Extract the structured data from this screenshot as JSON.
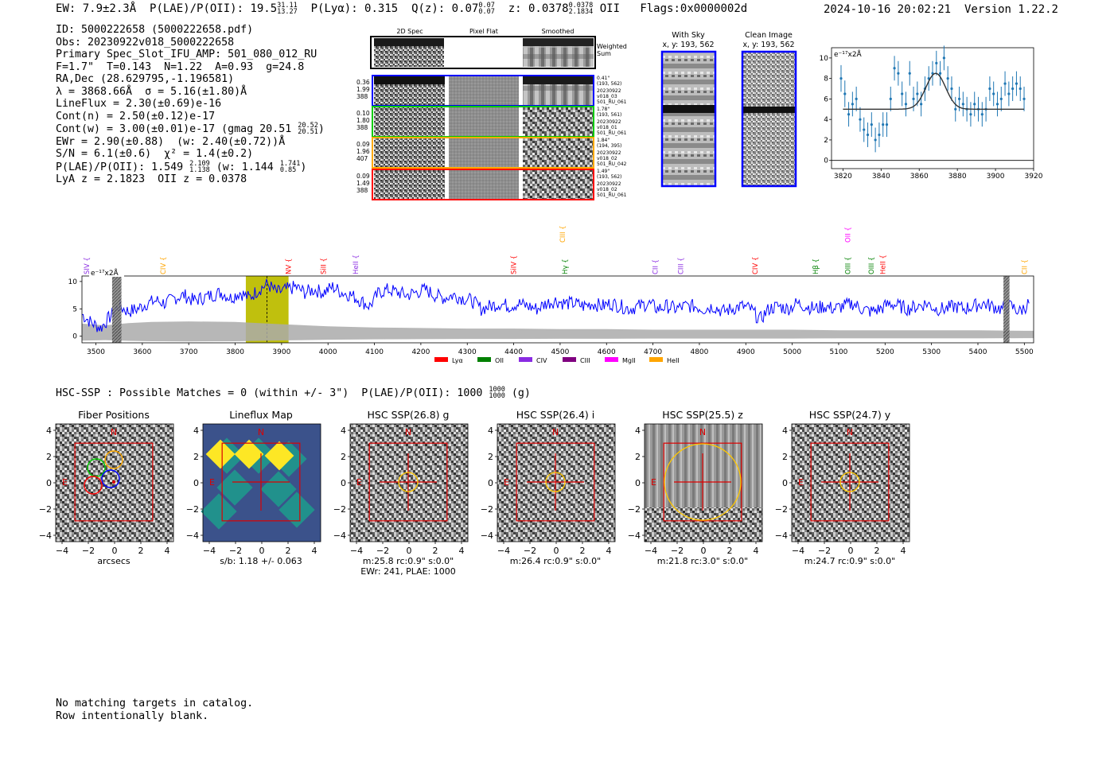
{
  "header": {
    "ew": "EW: 7.9±2.3Å",
    "plae": "P(LAE)/P(OII): 19.5",
    "plae_hi": "31.11",
    "plae_lo": "13.27",
    "plya": "P(Lyα): 0.315",
    "qz": "Q(z): 0.07",
    "qz_hi": "0.07",
    "qz_lo": "0.07",
    "z": "z: 0.0378",
    "z_hi": "0.0378",
    "z_lo": "2.1834",
    "z_tag": "OII",
    "flags": "Flags:0x0000002d",
    "datetime": "2024-10-16 20:02:21",
    "version": "Version 1.22.2"
  },
  "info": {
    "id": "ID: 5000222658 (5000222658.pdf)",
    "obs": "Obs: 20230922v018_5000222658",
    "primary": "Primary Spec_Slot_IFU_AMP: 501_080_012_RU",
    "fwhm": "F=1.7\"  T=0.143  N=1.22  A=0.93  g=24.8",
    "radec": "RA,Dec (28.629795,-1.196581)",
    "lambda": "λ = 3868.66Å  σ = 5.16(±1.80)Å",
    "lineflux": "LineFlux = 2.30(±0.69)e-16",
    "contn": "Cont(n) = 2.50(±0.12)e-17",
    "contw": "Cont(w) = 3.00(±0.01)e-17 (gmag 20.51",
    "contw_hi": "20.52",
    "contw_lo": "20.51",
    "contw_end": ")",
    "ewr": "EWr = 2.90(±0.88)  (w: 2.40(±0.72))Å",
    "sn": "S/N = 6.1(±0.6)  χ² = 1.4(±0.2)",
    "plae2": "P(LAE)/P(OII): 1.549",
    "plae2_hi": "2.109",
    "plae2_lo": "1.138",
    "plae2_w": "(w: 1.144",
    "plae2_w_hi": "1.741",
    "plae2_w_lo": "0.85",
    "plae2_end": ")",
    "lyaz": "LyA z = 2.1823  OII z = 0.0378"
  },
  "cutouts": {
    "col_headers": [
      "2D Spec",
      "Pixel Flat",
      "Smoothed"
    ],
    "weighted_sum": [
      "Weighted",
      "Sum"
    ],
    "rows": [
      {
        "left": [
          "0.36",
          "1.99",
          "388"
        ],
        "right": [
          "0.41\"",
          "(193, 562)",
          "20230922",
          "v018_03",
          "501_RU_061"
        ],
        "color": "#0000ff"
      },
      {
        "left": [
          "0.10",
          "1.80",
          "388"
        ],
        "right": [
          "1.78\"",
          "(193, 561)",
          "20230922",
          "v018_01",
          "501_RU_061"
        ],
        "color": "#00cc00"
      },
      {
        "left": [
          "0.09",
          "1.96",
          "407"
        ],
        "right": [
          "1.84\"",
          "(194, 395)",
          "20230922",
          "v018_02",
          "501_RU_042"
        ],
        "color": "#ffaa00"
      },
      {
        "left": [
          "0.09",
          "1.49",
          "388"
        ],
        "right": [
          "1.49\"",
          "(193, 562)",
          "20230922",
          "v018_02",
          "501_RU_061"
        ],
        "color": "#ff0000"
      }
    ]
  },
  "sky": {
    "with_sky": [
      "With Sky",
      "x, y: 193, 562"
    ],
    "clean": [
      "Clean Image",
      "x, y: 193, 562"
    ]
  },
  "zoom_chart": {
    "unit_label": "e⁻¹⁷x2Å",
    "xticks": [
      "3820",
      "3840",
      "3860",
      "3880",
      "3900",
      "3920"
    ],
    "yticks": [
      "0",
      "2",
      "4",
      "6",
      "8",
      "10"
    ]
  },
  "chart_data": {
    "type": "line",
    "title": "",
    "xlabel": "",
    "ylabel": "e-17x2Å",
    "xlim": [
      3470,
      5520
    ],
    "ylim": [
      -1.2,
      11
    ],
    "grid": false,
    "highlight_band": [
      3823,
      3915
    ],
    "center_line": 3868.66,
    "xticks": [
      3500,
      3600,
      3700,
      3800,
      3900,
      4000,
      4100,
      4200,
      4300,
      4400,
      4500,
      4600,
      4700,
      4800,
      4900,
      5000,
      5100,
      5200,
      5300,
      5400,
      5500
    ],
    "yticks": [
      0,
      5,
      10
    ],
    "line_labels": [
      {
        "name": "SIV",
        "wl": 3480,
        "color": "#8a2be2",
        "level": 0
      },
      {
        "name": "CIV",
        "wl": 3645,
        "color": "#ffa500",
        "level": 0
      },
      {
        "name": "NV",
        "wl": 3915,
        "color": "#ff0000",
        "level": 0
      },
      {
        "name": "SiII",
        "wl": 3990,
        "color": "#ff0000",
        "level": 0
      },
      {
        "name": "HeII",
        "wl": 4060,
        "color": "#8a2be2",
        "level": 0
      },
      {
        "name": "SiIV",
        "wl": 4400,
        "color": "#ff0000",
        "level": 0
      },
      {
        "name": "CIII",
        "wl": 4505,
        "color": "#ffa500",
        "level": 1
      },
      {
        "name": "Hγ",
        "wl": 4510,
        "color": "#008000",
        "level": 0
      },
      {
        "name": "CII",
        "wl": 4705,
        "color": "#8a2be2",
        "level": 0
      },
      {
        "name": "CIII",
        "wl": 4760,
        "color": "#8a2be2",
        "level": 0
      },
      {
        "name": "CIV",
        "wl": 4920,
        "color": "#ff0000",
        "level": 0
      },
      {
        "name": "Hβ",
        "wl": 5050,
        "color": "#008000",
        "level": 0
      },
      {
        "name": "OII",
        "wl": 5120,
        "color": "#ff00ff",
        "level": 1
      },
      {
        "name": "OIII",
        "wl": 5120,
        "color": "#008000",
        "level": 0
      },
      {
        "name": "OIII",
        "wl": 5170,
        "color": "#008000",
        "level": 0
      },
      {
        "name": "HeII",
        "wl": 5195,
        "color": "#ff0000",
        "level": 0
      },
      {
        "name": "CII",
        "wl": 5500,
        "color": "#ffa500",
        "level": 0
      }
    ],
    "legend": [
      {
        "name": "Lyα",
        "color": "#ff0000"
      },
      {
        "name": "OII",
        "color": "#008000"
      },
      {
        "name": "CIV",
        "color": "#8a2be2"
      },
      {
        "name": "CIII",
        "color": "#800080"
      },
      {
        "name": "MgII",
        "color": "#ff00ff"
      },
      {
        "name": "HeII",
        "color": "#ffa500"
      }
    ],
    "series": [
      {
        "name": "",
        "color": "#0000ff",
        "x": [
          3470,
          3490,
          3510,
          3530,
          3550,
          3570,
          3590,
          3610,
          3630,
          3650,
          3670,
          3690,
          3710,
          3730,
          3750,
          3770,
          3790,
          3810,
          3830,
          3850,
          3870,
          3890,
          3910,
          3930,
          3950,
          3970,
          3990,
          4010,
          4030,
          4050,
          4070,
          4090,
          4110,
          4130,
          4150,
          4170,
          4190,
          4210,
          4230,
          4250,
          4270,
          4290,
          4310,
          4330,
          4350,
          4370,
          4390,
          4410,
          4430,
          4450,
          4470,
          4490,
          4510,
          4530,
          4550,
          4570,
          4590,
          4610,
          4630,
          4650,
          4670,
          4690,
          4710,
          4730,
          4750,
          4770,
          4790,
          4810,
          4830,
          4850,
          4870,
          4890,
          4910,
          4930,
          4950,
          4970,
          4990,
          5010,
          5030,
          5050,
          5070,
          5090,
          5110,
          5130,
          5150,
          5170,
          5190,
          5210,
          5230,
          5250,
          5270,
          5290,
          5310,
          5330,
          5350,
          5370,
          5390,
          5410,
          5430,
          5450,
          5470,
          5490,
          5510
        ],
        "y": [
          4.0,
          2.5,
          1.5,
          3.5,
          5.5,
          4.5,
          5.0,
          6.0,
          6.5,
          6.0,
          7.0,
          7.5,
          6.5,
          7.0,
          7.5,
          8.0,
          7.0,
          8.0,
          7.0,
          8.5,
          9.5,
          8.0,
          8.5,
          9.0,
          8.0,
          8.5,
          8.0,
          9.0,
          8.0,
          7.5,
          6.5,
          5.5,
          8.0,
          8.5,
          8.0,
          7.5,
          8.0,
          8.5,
          7.5,
          7.0,
          7.5,
          7.0,
          6.5,
          5.0,
          5.5,
          6.0,
          5.5,
          6.0,
          5.5,
          5.0,
          6.0,
          6.5,
          6.0,
          6.0,
          5.5,
          6.0,
          5.5,
          6.0,
          5.5,
          5.0,
          5.5,
          6.0,
          5.0,
          5.5,
          5.0,
          5.5,
          5.5,
          5.0,
          5.5,
          4.5,
          5.0,
          5.5,
          5.0,
          3.0,
          5.0,
          5.5,
          5.0,
          6.0,
          5.5,
          5.0,
          5.5,
          5.0,
          5.5,
          6.0,
          5.0,
          4.5,
          5.0,
          6.0,
          5.5,
          5.0,
          5.5,
          6.0,
          5.0,
          5.0,
          5.5,
          5.0,
          5.5,
          6.0,
          5.5,
          5.0,
          5.5,
          4.5,
          6.0
        ]
      },
      {
        "name": "",
        "color": "#aaaaaa",
        "x": [
          3470,
          3520,
          3570,
          3620,
          3700,
          3800,
          3900,
          4000,
          4100,
          4200,
          4300,
          4400,
          4500,
          4600,
          4700,
          4800,
          4900,
          5000,
          5100,
          5200,
          5300,
          5400,
          5500,
          5520
        ],
        "y": [
          2.3,
          2.0,
          2.4,
          2.6,
          2.7,
          2.6,
          2.2,
          1.8,
          1.6,
          1.5,
          1.4,
          1.4,
          1.3,
          1.3,
          1.2,
          1.2,
          1.2,
          1.2,
          1.1,
          1.1,
          1.1,
          1.1,
          1.0,
          1.0
        ]
      }
    ],
    "zoom": {
      "xlim": [
        3814,
        3920
      ],
      "ylim": [
        -0.8,
        11
      ],
      "points": [
        {
          "x": 3819,
          "y": 8.0,
          "e": 1.3
        },
        {
          "x": 3821,
          "y": 6.5,
          "e": 1.3
        },
        {
          "x": 3823,
          "y": 4.5,
          "e": 1.2
        },
        {
          "x": 3825,
          "y": 5.5,
          "e": 1.2
        },
        {
          "x": 3827,
          "y": 6.0,
          "e": 1.2
        },
        {
          "x": 3829,
          "y": 4.0,
          "e": 1.2
        },
        {
          "x": 3831,
          "y": 3.0,
          "e": 1.2
        },
        {
          "x": 3833,
          "y": 2.5,
          "e": 1.2
        },
        {
          "x": 3835,
          "y": 3.5,
          "e": 1.2
        },
        {
          "x": 3837,
          "y": 2.0,
          "e": 1.2
        },
        {
          "x": 3839,
          "y": 2.5,
          "e": 1.2
        },
        {
          "x": 3841,
          "y": 3.5,
          "e": 1.2
        },
        {
          "x": 3843,
          "y": 3.5,
          "e": 1.2
        },
        {
          "x": 3845,
          "y": 6.0,
          "e": 1.2
        },
        {
          "x": 3847,
          "y": 9.0,
          "e": 1.2
        },
        {
          "x": 3849,
          "y": 8.5,
          "e": 1.2
        },
        {
          "x": 3851,
          "y": 6.5,
          "e": 1.2
        },
        {
          "x": 3853,
          "y": 5.5,
          "e": 1.2
        },
        {
          "x": 3855,
          "y": 8.5,
          "e": 1.2
        },
        {
          "x": 3857,
          "y": 6.0,
          "e": 1.2
        },
        {
          "x": 3859,
          "y": 6.5,
          "e": 1.2
        },
        {
          "x": 3861,
          "y": 5.5,
          "e": 1.2
        },
        {
          "x": 3863,
          "y": 7.0,
          "e": 1.2
        },
        {
          "x": 3865,
          "y": 8.0,
          "e": 1.2
        },
        {
          "x": 3867,
          "y": 8.5,
          "e": 1.2
        },
        {
          "x": 3869,
          "y": 9.5,
          "e": 1.2
        },
        {
          "x": 3871,
          "y": 8.5,
          "e": 1.2
        },
        {
          "x": 3873,
          "y": 10.0,
          "e": 1.2
        },
        {
          "x": 3875,
          "y": 8.0,
          "e": 1.2
        },
        {
          "x": 3877,
          "y": 7.0,
          "e": 1.2
        },
        {
          "x": 3879,
          "y": 5.0,
          "e": 1.2
        },
        {
          "x": 3881,
          "y": 6.0,
          "e": 1.2
        },
        {
          "x": 3883,
          "y": 5.5,
          "e": 1.2
        },
        {
          "x": 3885,
          "y": 5.0,
          "e": 1.2
        },
        {
          "x": 3887,
          "y": 4.5,
          "e": 1.2
        },
        {
          "x": 3889,
          "y": 5.5,
          "e": 1.2
        },
        {
          "x": 3891,
          "y": 5.0,
          "e": 1.2
        },
        {
          "x": 3893,
          "y": 4.5,
          "e": 1.2
        },
        {
          "x": 3895,
          "y": 5.0,
          "e": 1.2
        },
        {
          "x": 3897,
          "y": 7.0,
          "e": 1.2
        },
        {
          "x": 3899,
          "y": 6.5,
          "e": 1.2
        },
        {
          "x": 3901,
          "y": 5.5,
          "e": 1.2
        },
        {
          "x": 3903,
          "y": 6.0,
          "e": 1.2
        },
        {
          "x": 3905,
          "y": 7.5,
          "e": 1.2
        },
        {
          "x": 3907,
          "y": 6.5,
          "e": 1.2
        },
        {
          "x": 3909,
          "y": 7.0,
          "e": 1.2
        },
        {
          "x": 3911,
          "y": 7.5,
          "e": 1.2
        },
        {
          "x": 3913,
          "y": 7.0,
          "e": 1.2
        },
        {
          "x": 3915,
          "y": 6.0,
          "e": 1.2
        }
      ],
      "fit": {
        "center": 3868.66,
        "sigma": 5.16,
        "amplitude": 3.5,
        "continuum": 5.0
      }
    }
  },
  "hsc": {
    "title": "HSC-SSP : Possible Matches = 0 (within +/- 3\")  P(LAE)/P(OII): 1000",
    "title_hi": "1000",
    "title_lo": "1000",
    "title_end": "(g)",
    "panels": [
      {
        "title": "Fiber Positions",
        "caption": [
          "arcsecs"
        ]
      },
      {
        "title": "Lineflux Map",
        "caption": [
          "s/b: 1.18 +/- 0.063"
        ]
      },
      {
        "title": "HSC SSP(26.8) g",
        "caption": [
          "m:25.8 rc:0.9\"  s:0.0\"",
          "EWr: 241, PLAE: 1000"
        ]
      },
      {
        "title": "HSC SSP(26.4) i",
        "caption": [
          "m:26.4 rc:0.9\"  s:0.0\""
        ]
      },
      {
        "title": "HSC SSP(25.5) z",
        "caption": [
          "m:21.8 rc:3.0\"  s:0.0\""
        ]
      },
      {
        "title": "HSC SSP(24.7) y",
        "caption": [
          "m:24.7 rc:0.9\"  s:0.0\""
        ]
      }
    ],
    "ticks": [
      "4",
      "2",
      "0",
      "−2",
      "−4"
    ],
    "xticks": [
      "−4",
      "−2",
      "0",
      "2",
      "4"
    ],
    "north": "N",
    "east": "E"
  },
  "footer": [
    "No matching targets in catalog.",
    "Row intentionally blank."
  ]
}
